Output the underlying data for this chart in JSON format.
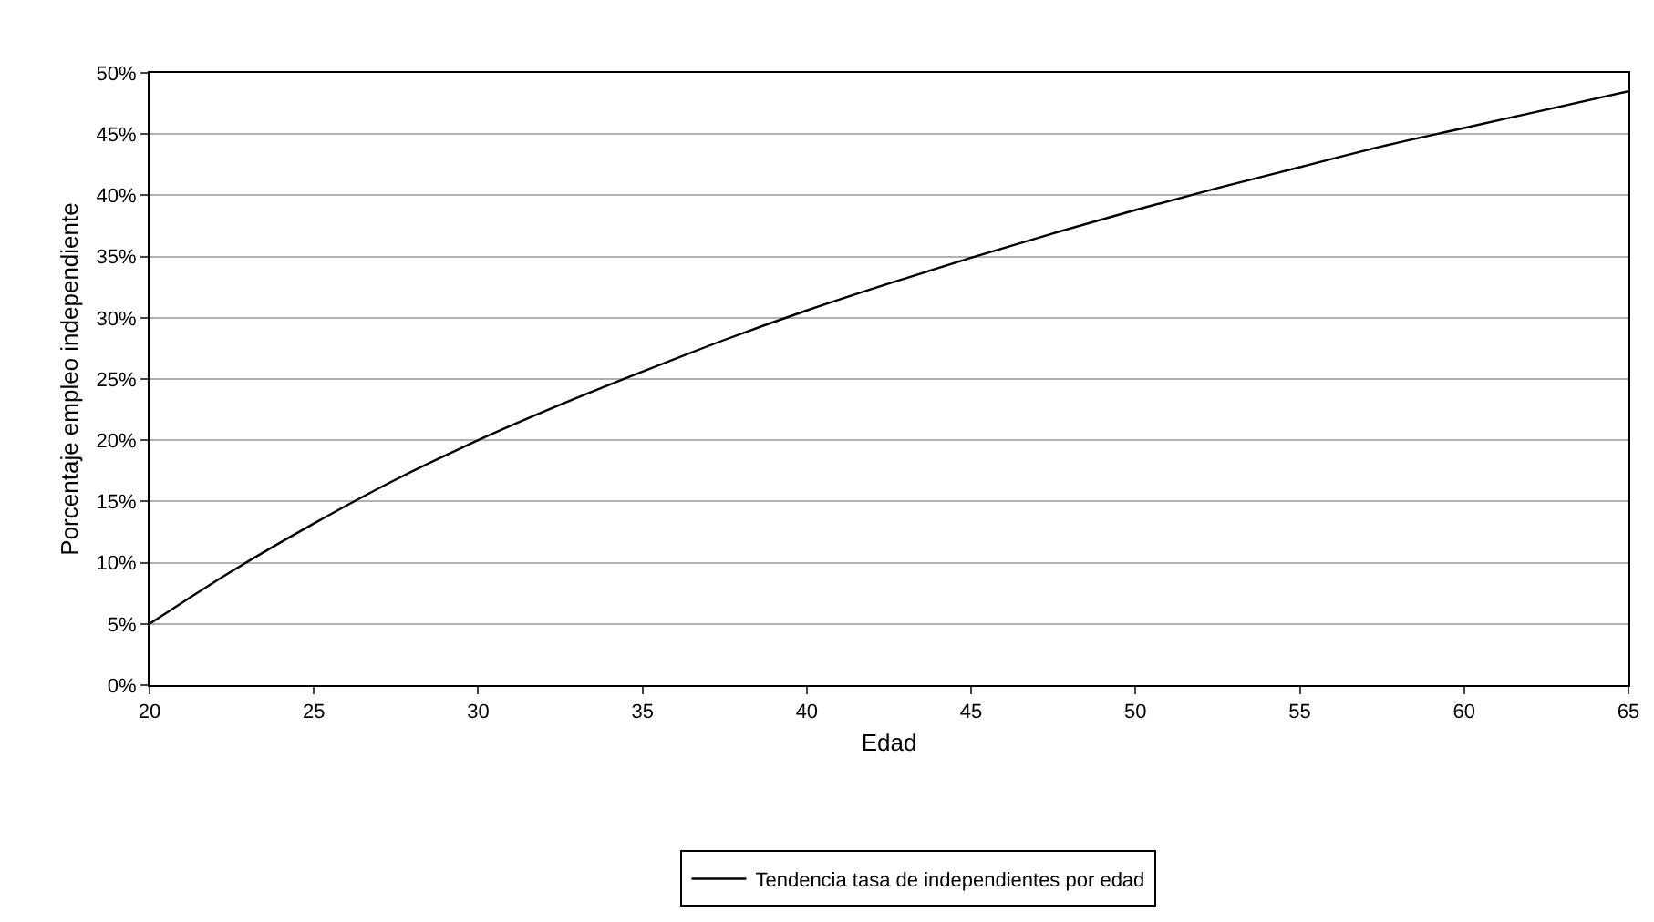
{
  "chart_data": {
    "type": "line",
    "xlabel": "Edad",
    "ylabel": "Porcentaje empleo independiente",
    "x": [
      20,
      22.5,
      25,
      27.5,
      30,
      32.5,
      35,
      37.5,
      40,
      42.5,
      45,
      47.5,
      50,
      52.5,
      55,
      57.5,
      60,
      62.5,
      65
    ],
    "series": [
      {
        "name": "Tendencia tasa de independientes por edad",
        "color": "#000000",
        "values": [
          5.0,
          9.3,
          13.2,
          16.8,
          20.0,
          22.9,
          25.6,
          28.2,
          30.6,
          32.8,
          34.9,
          36.9,
          38.8,
          40.6,
          42.3,
          44.0,
          45.5,
          47.0,
          48.5
        ]
      }
    ],
    "xlim": [
      20,
      65
    ],
    "xticks": [
      20,
      25,
      30,
      35,
      40,
      45,
      50,
      55,
      60,
      65
    ],
    "ylim": [
      0,
      50
    ],
    "yticks": [
      {
        "value": 0,
        "label": "0%"
      },
      {
        "value": 5,
        "label": "5%"
      },
      {
        "value": 10,
        "label": "10%"
      },
      {
        "value": 15,
        "label": "15%"
      },
      {
        "value": 20,
        "label": "20%"
      },
      {
        "value": 25,
        "label": "25%"
      },
      {
        "value": 30,
        "label": "30%"
      },
      {
        "value": 35,
        "label": "35%"
      },
      {
        "value": 40,
        "label": "40%"
      },
      {
        "value": 45,
        "label": "45%"
      },
      {
        "value": 50,
        "label": "50%"
      }
    ],
    "grid": "y",
    "legend": "bottom",
    "marker": "none",
    "line_style": "solid"
  }
}
